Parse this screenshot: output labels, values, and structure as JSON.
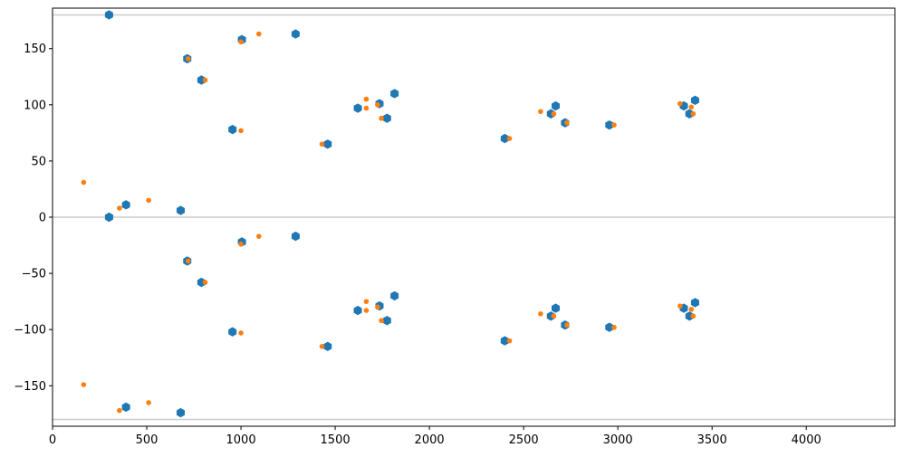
{
  "chart_data": {
    "type": "scatter",
    "title": "",
    "xlabel": "",
    "ylabel": "",
    "xlim": [
      0,
      4470
    ],
    "ylim": [
      -186,
      186
    ],
    "xticks": [
      0,
      500,
      1000,
      1500,
      2000,
      2500,
      3000,
      3500,
      4000
    ],
    "yticks": [
      -150,
      -100,
      -50,
      0,
      50,
      100,
      150
    ],
    "grid": false,
    "reference_lines_y": [
      180,
      0,
      -180
    ],
    "reference_line_color": "#cccccc",
    "series": [
      {
        "color": "#1f77b4",
        "marker": "hexagon",
        "points": [
          [
            300,
            180
          ],
          [
            300,
            0
          ],
          [
            390,
            11
          ],
          [
            390,
            -169
          ],
          [
            680,
            6
          ],
          [
            680,
            -174
          ],
          [
            715,
            141
          ],
          [
            715,
            -39
          ],
          [
            790,
            122
          ],
          [
            790,
            -58
          ],
          [
            955,
            78
          ],
          [
            955,
            -102
          ],
          [
            1005,
            158
          ],
          [
            1005,
            -22
          ],
          [
            1290,
            163
          ],
          [
            1290,
            -17
          ],
          [
            1460,
            65
          ],
          [
            1460,
            -115
          ],
          [
            1620,
            97
          ],
          [
            1620,
            -83
          ],
          [
            1735,
            101
          ],
          [
            1735,
            -79
          ],
          [
            1775,
            88
          ],
          [
            1775,
            -92
          ],
          [
            1815,
            110
          ],
          [
            1815,
            -70
          ],
          [
            2400,
            70
          ],
          [
            2400,
            -110
          ],
          [
            2645,
            92
          ],
          [
            2645,
            -88
          ],
          [
            2670,
            99
          ],
          [
            2670,
            -81
          ],
          [
            2720,
            84
          ],
          [
            2720,
            -96
          ],
          [
            2955,
            82
          ],
          [
            2955,
            -98
          ],
          [
            3350,
            99
          ],
          [
            3350,
            -81
          ],
          [
            3380,
            92
          ],
          [
            3380,
            -88
          ],
          [
            3410,
            104
          ],
          [
            3410,
            -76
          ]
        ]
      },
      {
        "color": "#ff7f0e",
        "marker": "circle",
        "points": [
          [
            165,
            31
          ],
          [
            165,
            -149
          ],
          [
            355,
            8
          ],
          [
            355,
            -172
          ],
          [
            510,
            15
          ],
          [
            510,
            -165
          ],
          [
            720,
            141
          ],
          [
            720,
            -39
          ],
          [
            810,
            122
          ],
          [
            810,
            -58
          ],
          [
            1000,
            77
          ],
          [
            1000,
            -103
          ],
          [
            1000,
            156
          ],
          [
            1000,
            -24
          ],
          [
            1095,
            163
          ],
          [
            1095,
            -17
          ],
          [
            1430,
            65
          ],
          [
            1430,
            -115
          ],
          [
            1665,
            105
          ],
          [
            1665,
            -75
          ],
          [
            1665,
            97
          ],
          [
            1665,
            -83
          ],
          [
            1725,
            100
          ],
          [
            1725,
            -80
          ],
          [
            1745,
            88
          ],
          [
            1745,
            -92
          ],
          [
            2425,
            70
          ],
          [
            2425,
            -110
          ],
          [
            2590,
            94
          ],
          [
            2590,
            -86
          ],
          [
            2660,
            92
          ],
          [
            2660,
            -88
          ],
          [
            2730,
            84
          ],
          [
            2730,
            -96
          ],
          [
            2980,
            82
          ],
          [
            2980,
            -98
          ],
          [
            3330,
            101
          ],
          [
            3330,
            -79
          ],
          [
            3390,
            98
          ],
          [
            3390,
            -82
          ],
          [
            3400,
            92
          ],
          [
            3400,
            -88
          ]
        ]
      }
    ]
  }
}
